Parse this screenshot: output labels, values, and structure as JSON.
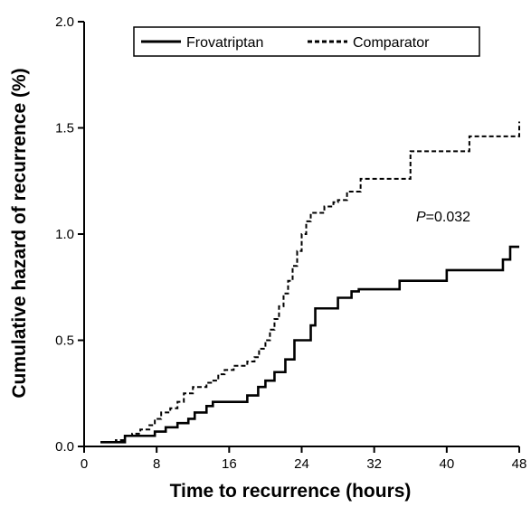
{
  "chart_data": {
    "type": "line",
    "xlabel": "Time to recurrence (hours)",
    "ylabel": "Cumulative hazard of recurrence (%)",
    "xlim": [
      0,
      48
    ],
    "ylim": [
      0,
      2.0
    ],
    "xticks": [
      "0",
      "8",
      "16",
      "24",
      "32",
      "40",
      "48"
    ],
    "yticks": [
      "0.0",
      "0.5",
      "1.0",
      "1.5",
      "2.0"
    ],
    "grid": false,
    "legend_position": "top",
    "annotation": {
      "italic": "P",
      "rest": "=0.032"
    },
    "series": [
      {
        "name": "Frovatriptan",
        "style": "solid",
        "color": "#000000",
        "x": [
          1.8,
          4.5,
          7.8,
          9.0,
          10.3,
          11.5,
          12.2,
          13.5,
          14.2,
          18.0,
          19.2,
          20.0,
          21.0,
          22.2,
          23.2,
          25.0,
          25.5,
          28.0,
          29.5,
          30.3,
          34.8,
          40.0,
          46.2,
          47.0,
          48.0
        ],
        "y": [
          0.02,
          0.05,
          0.07,
          0.09,
          0.11,
          0.13,
          0.16,
          0.19,
          0.21,
          0.24,
          0.28,
          0.31,
          0.35,
          0.41,
          0.5,
          0.57,
          0.65,
          0.7,
          0.73,
          0.74,
          0.78,
          0.83,
          0.88,
          0.94,
          0.94
        ]
      },
      {
        "name": "Comparator",
        "style": "dashed",
        "color": "#000000",
        "x": [
          1.8,
          3.5,
          4.5,
          5.3,
          6.2,
          7.2,
          7.8,
          8.5,
          9.5,
          10.3,
          11.0,
          12.0,
          13.5,
          14.0,
          14.8,
          15.5,
          16.5,
          18.0,
          18.8,
          19.3,
          20.0,
          20.5,
          21.0,
          21.5,
          22.0,
          22.5,
          23.0,
          23.5,
          24.0,
          24.5,
          25.0,
          26.0,
          26.5,
          27.5,
          28.0,
          29.0,
          30.5,
          36.0,
          42.5,
          47.5,
          48.0
        ],
        "y": [
          0.02,
          0.03,
          0.05,
          0.06,
          0.08,
          0.1,
          0.13,
          0.16,
          0.18,
          0.21,
          0.25,
          0.28,
          0.3,
          0.31,
          0.34,
          0.36,
          0.38,
          0.4,
          0.42,
          0.46,
          0.5,
          0.55,
          0.6,
          0.66,
          0.72,
          0.78,
          0.85,
          0.92,
          1.0,
          1.06,
          1.1,
          1.1,
          1.13,
          1.15,
          1.16,
          1.2,
          1.26,
          1.39,
          1.46,
          1.46,
          1.53
        ]
      }
    ]
  }
}
